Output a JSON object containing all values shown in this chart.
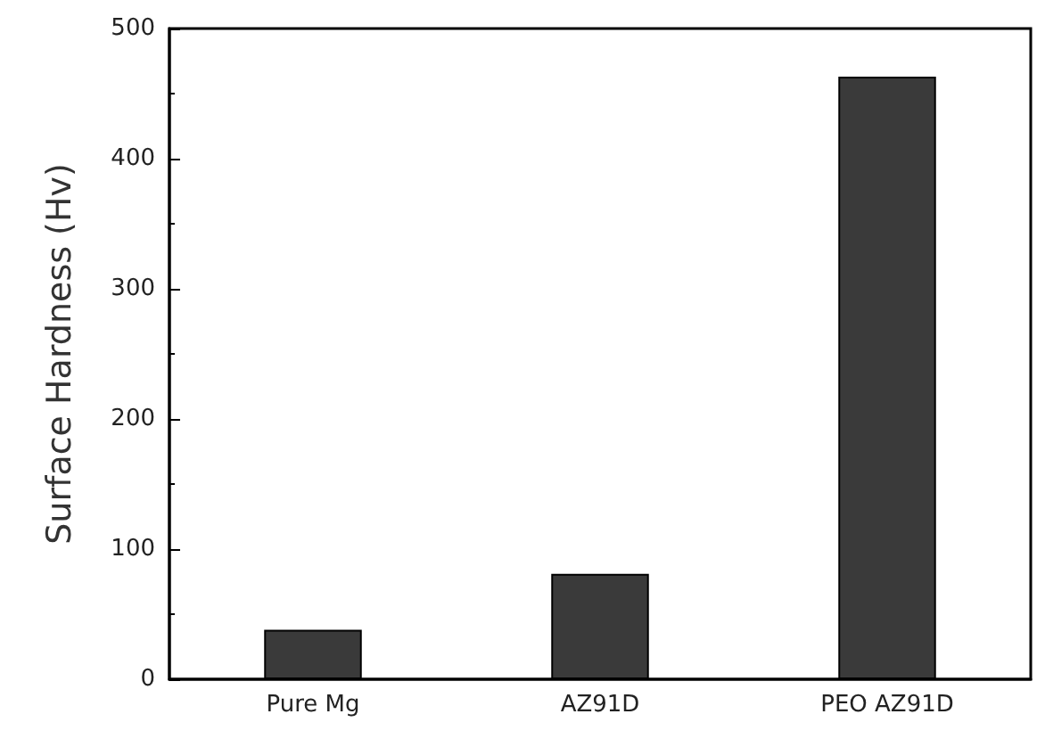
{
  "chart_data": {
    "type": "bar",
    "ylabel": "Surface Hardness (Hv)",
    "categories": [
      "Pure Mg",
      "AZ91D",
      "PEO AZ91D"
    ],
    "values": [
      38,
      81,
      463
    ],
    "color": "#3a3a3a",
    "ylim": [
      0,
      500
    ],
    "yticks": [
      0,
      100,
      200,
      300,
      400,
      500
    ],
    "grid": false
  }
}
